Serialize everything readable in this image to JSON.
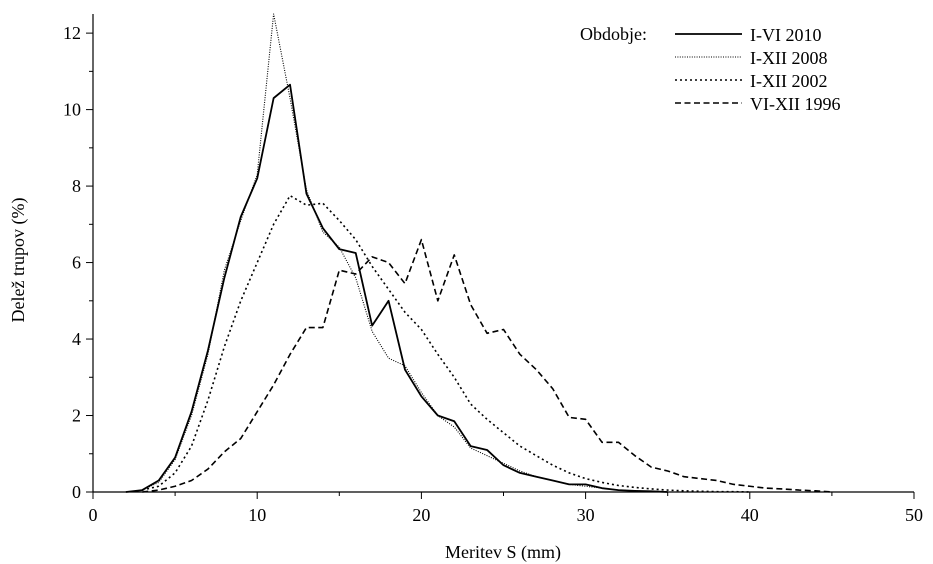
{
  "chart_data": {
    "type": "line",
    "xlabel": "Meritev S (mm)",
    "ylabel": "Delež trupov (%)",
    "xlim": [
      0,
      50
    ],
    "ylim": [
      0,
      12.5
    ],
    "x_ticks": [
      0,
      10,
      20,
      30,
      40,
      50
    ],
    "y_ticks": [
      0,
      2,
      4,
      6,
      8,
      10,
      12
    ],
    "grid": false,
    "legend": {
      "title": "Obdobje:",
      "position": "top-right"
    },
    "series": [
      {
        "name": "I-VI 2010",
        "style": "solid",
        "x": [
          2,
          3,
          4,
          5,
          6,
          7,
          8,
          9,
          10,
          11,
          12,
          13,
          14,
          15,
          16,
          17,
          18,
          19,
          20,
          21,
          22,
          23,
          24,
          25,
          26,
          27,
          28,
          29,
          30,
          31,
          32,
          33,
          34,
          35
        ],
        "y": [
          0,
          0.05,
          0.3,
          0.9,
          2.1,
          3.7,
          5.6,
          7.2,
          8.2,
          10.3,
          10.65,
          7.8,
          6.9,
          6.35,
          6.25,
          4.35,
          5.0,
          3.2,
          2.5,
          2.0,
          1.85,
          1.2,
          1.1,
          0.7,
          0.5,
          0.4,
          0.3,
          0.2,
          0.2,
          0.1,
          0.05,
          0.03,
          0.02,
          0
        ]
      },
      {
        "name": "I-XII 2008",
        "style": "dotted",
        "x": [
          2,
          3,
          4,
          5,
          6,
          7,
          8,
          9,
          10,
          11,
          12,
          13,
          14,
          15,
          16,
          17,
          18,
          19,
          20,
          21,
          22,
          23,
          24,
          25,
          26,
          27,
          28,
          29,
          30,
          31,
          32,
          33,
          34,
          35
        ],
        "y": [
          0,
          0.05,
          0.25,
          0.85,
          2.0,
          3.6,
          5.8,
          7.1,
          8.3,
          12.5,
          10.3,
          7.9,
          6.8,
          6.4,
          5.6,
          4.2,
          3.5,
          3.3,
          2.6,
          2.0,
          1.7,
          1.15,
          0.95,
          0.75,
          0.55,
          0.4,
          0.3,
          0.2,
          0.15,
          0.1,
          0.05,
          0.03,
          0.02,
          0
        ]
      },
      {
        "name": "I-XII 2002",
        "style": "dotted-fine",
        "x": [
          3,
          4,
          5,
          6,
          7,
          8,
          9,
          10,
          11,
          12,
          13,
          14,
          15,
          16,
          17,
          18,
          19,
          20,
          21,
          22,
          23,
          24,
          25,
          26,
          27,
          28,
          29,
          30,
          31,
          32,
          33,
          34,
          35,
          36,
          37,
          38,
          39,
          40
        ],
        "y": [
          0.05,
          0.15,
          0.5,
          1.2,
          2.4,
          3.8,
          5.0,
          6.0,
          7.0,
          7.75,
          7.5,
          7.55,
          7.1,
          6.6,
          5.9,
          5.3,
          4.7,
          4.25,
          3.6,
          3.0,
          2.3,
          1.9,
          1.55,
          1.2,
          0.95,
          0.7,
          0.5,
          0.35,
          0.25,
          0.17,
          0.12,
          0.08,
          0.05,
          0.03,
          0.02,
          0.01,
          0.01,
          0
        ]
      },
      {
        "name": "VI-XII 1996",
        "style": "dashed",
        "x": [
          3,
          4,
          5,
          6,
          7,
          8,
          9,
          10,
          11,
          12,
          13,
          14,
          15,
          16,
          17,
          18,
          19,
          20,
          21,
          22,
          23,
          24,
          25,
          26,
          27,
          28,
          29,
          30,
          31,
          32,
          33,
          34,
          35,
          36,
          37,
          38,
          39,
          40,
          41,
          42,
          43,
          44,
          45
        ],
        "y": [
          0,
          0.05,
          0.15,
          0.3,
          0.6,
          1.05,
          1.4,
          2.1,
          2.8,
          3.6,
          4.3,
          4.3,
          5.8,
          5.7,
          6.15,
          6.0,
          5.45,
          6.6,
          5.0,
          6.2,
          4.9,
          4.15,
          4.25,
          3.6,
          3.2,
          2.7,
          1.95,
          1.9,
          1.3,
          1.3,
          0.95,
          0.65,
          0.55,
          0.4,
          0.35,
          0.3,
          0.2,
          0.15,
          0.1,
          0.08,
          0.05,
          0.03,
          0
        ]
      }
    ]
  }
}
